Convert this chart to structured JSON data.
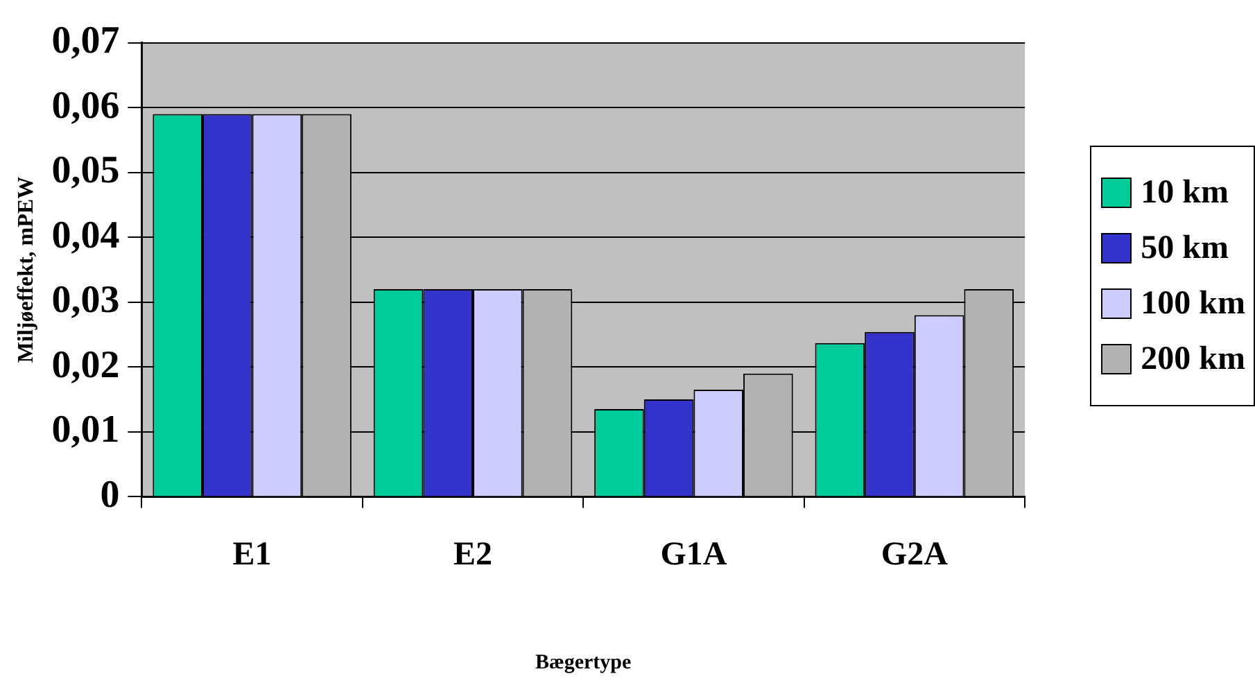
{
  "chart_data": {
    "type": "bar",
    "xlabel": "Bægertype",
    "ylabel": "Miljøeffekt, mPEW",
    "categories": [
      "E1",
      "E2",
      "G1A",
      "G2A"
    ],
    "series": [
      {
        "name": "10 km",
        "color": "#00cc99",
        "values": [
          0.059,
          0.032,
          0.0135,
          0.0237
        ]
      },
      {
        "name": "50 km",
        "color": "#3333cc",
        "values": [
          0.059,
          0.032,
          0.015,
          0.0254
        ]
      },
      {
        "name": "100 km",
        "color": "#ccccff",
        "values": [
          0.059,
          0.032,
          0.0165,
          0.028
        ]
      },
      {
        "name": "200 km",
        "color": "#b2b2b2",
        "values": [
          0.059,
          0.032,
          0.019,
          0.032
        ]
      }
    ],
    "ylim": [
      0,
      0.07
    ],
    "yticks": [
      0,
      {
        "value": 0.01,
        "label": "0,01"
      },
      {
        "value": 0.02,
        "label": "0,02"
      },
      {
        "value": 0.03,
        "label": "0,03"
      },
      {
        "value": 0.04,
        "label": "0,04"
      },
      {
        "value": 0.05,
        "label": "0,05"
      },
      {
        "value": 0.06,
        "label": "0,06"
      },
      {
        "value": 0.07,
        "label": "0,07"
      }
    ],
    "grid": "y",
    "legend": "right"
  }
}
